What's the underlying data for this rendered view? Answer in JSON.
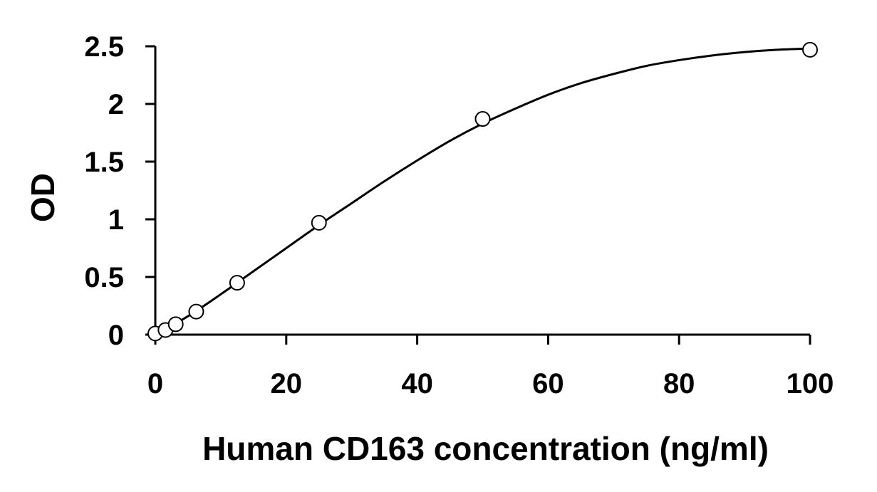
{
  "chart_data": {
    "type": "scatter",
    "title": "",
    "xlabel": "Human CD163 concentration (ng/ml)",
    "ylabel": "OD",
    "xlim": [
      0,
      100
    ],
    "ylim": [
      0,
      2.5
    ],
    "x_ticks": [
      0,
      20,
      40,
      60,
      80,
      100
    ],
    "x_tick_labels": [
      "0",
      "20",
      "40",
      "60",
      "80",
      "100"
    ],
    "y_ticks": [
      0,
      0.5,
      1,
      1.5,
      2,
      2.5
    ],
    "y_tick_labels": [
      "0",
      "0.5",
      "1",
      "1.5",
      "2",
      "2.5"
    ],
    "grid": false,
    "legend": "none",
    "marker": "open-circle",
    "series": [
      {
        "x": [
          0,
          1.56,
          3.12,
          6.25,
          12.5,
          25,
          50,
          100
        ],
        "y": [
          0.01,
          0.04,
          0.09,
          0.2,
          0.45,
          0.97,
          1.87,
          2.47
        ]
      }
    ],
    "fit_curve": {
      "type": "line",
      "style": "smooth",
      "x": [
        0,
        5,
        10,
        15,
        20,
        25,
        30,
        35,
        40,
        45,
        50,
        55,
        60,
        65,
        70,
        75,
        80,
        85,
        90,
        95,
        100
      ],
      "y": [
        0.0,
        0.16,
        0.35,
        0.55,
        0.75,
        0.95,
        1.14,
        1.33,
        1.51,
        1.68,
        1.83,
        1.96,
        2.08,
        2.18,
        2.26,
        2.33,
        2.38,
        2.42,
        2.45,
        2.47,
        2.48
      ]
    }
  }
}
